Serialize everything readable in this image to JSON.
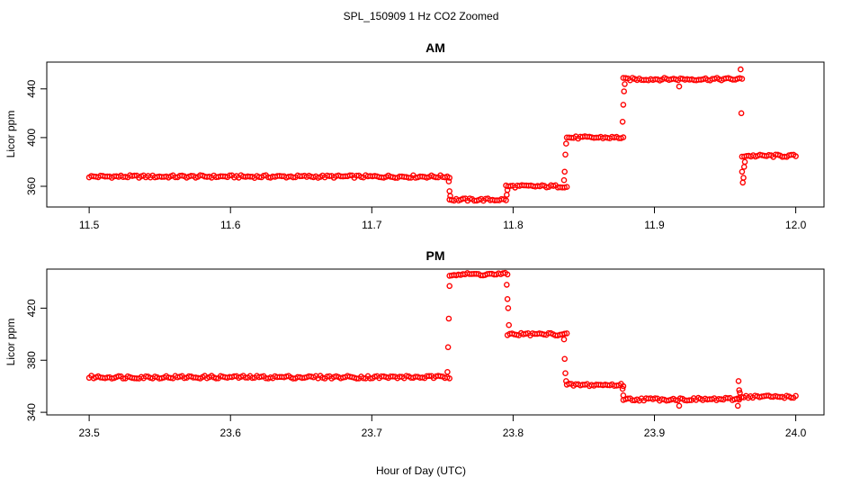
{
  "figure": {
    "title": "SPL_150909  1 Hz CO2 Zoomed",
    "xlabel": "Hour of Day (UTC)"
  },
  "chart_data": [
    {
      "type": "scatter",
      "title": "AM",
      "xlabel": "",
      "ylabel": "Licor ppm",
      "xlim": [
        11.47,
        12.02
      ],
      "ylim": [
        343,
        462
      ],
      "xticks": [
        11.5,
        11.6,
        11.7,
        11.8,
        11.9,
        12.0
      ],
      "xtick_labels": [
        "11.5",
        "11.6",
        "11.7",
        "11.8",
        "11.9",
        "12.0"
      ],
      "yticks": [
        360,
        400,
        440
      ],
      "ytick_labels": [
        "360",
        "400",
        "440"
      ],
      "grid": false,
      "marker": "open-circle",
      "color": "#ff0000",
      "segments": [
        {
          "x_start": 11.5,
          "x_end": 11.755,
          "y": 368
        },
        {
          "x_start": 11.755,
          "x_end": 11.795,
          "y": 349
        },
        {
          "x_start": 11.795,
          "x_end": 11.838,
          "y": 360
        },
        {
          "x_start": 11.838,
          "x_end": 11.878,
          "y": 400
        },
        {
          "x_start": 11.878,
          "x_end": 11.962,
          "y": 448
        },
        {
          "x_start": 11.962,
          "x_end": 12.0,
          "y": 385
        }
      ],
      "transition_points": [
        {
          "x": 11.7545,
          "y": 364
        },
        {
          "x": 11.755,
          "y": 356
        },
        {
          "x": 11.7555,
          "y": 352
        },
        {
          "x": 11.7955,
          "y": 353
        },
        {
          "x": 11.796,
          "y": 357
        },
        {
          "x": 11.836,
          "y": 365
        },
        {
          "x": 11.8365,
          "y": 372
        },
        {
          "x": 11.837,
          "y": 386
        },
        {
          "x": 11.8375,
          "y": 395
        },
        {
          "x": 11.8775,
          "y": 413
        },
        {
          "x": 11.878,
          "y": 427
        },
        {
          "x": 11.8785,
          "y": 438
        },
        {
          "x": 11.879,
          "y": 444
        },
        {
          "x": 11.9175,
          "y": 442
        },
        {
          "x": 11.961,
          "y": 456
        },
        {
          "x": 11.9615,
          "y": 420
        },
        {
          "x": 11.962,
          "y": 372
        },
        {
          "x": 11.9625,
          "y": 363
        },
        {
          "x": 11.963,
          "y": 367
        },
        {
          "x": 11.9635,
          "y": 376
        },
        {
          "x": 11.964,
          "y": 380
        }
      ]
    },
    {
      "type": "scatter",
      "title": "PM",
      "xlabel": "Hour of Day (UTC)",
      "ylabel": "Licor ppm",
      "xlim": [
        23.47,
        24.02
      ],
      "ylim": [
        338,
        450
      ],
      "xticks": [
        23.5,
        23.6,
        23.7,
        23.8,
        23.9,
        24.0
      ],
      "xtick_labels": [
        "23.5",
        "23.6",
        "23.7",
        "23.8",
        "23.9",
        "24.0"
      ],
      "yticks": [
        340,
        380,
        420
      ],
      "ytick_labels": [
        "340",
        "380",
        "420"
      ],
      "grid": false,
      "marker": "open-circle",
      "color": "#ff0000",
      "segments": [
        {
          "x_start": 23.5,
          "x_end": 23.755,
          "y": 367
        },
        {
          "x_start": 23.755,
          "x_end": 23.796,
          "y": 446
        },
        {
          "x_start": 23.796,
          "x_end": 23.838,
          "y": 400
        },
        {
          "x_start": 23.838,
          "x_end": 23.878,
          "y": 361
        },
        {
          "x_start": 23.878,
          "x_end": 23.96,
          "y": 350
        },
        {
          "x_start": 23.96,
          "x_end": 24.0,
          "y": 352
        }
      ],
      "transition_points": [
        {
          "x": 23.7535,
          "y": 371
        },
        {
          "x": 23.754,
          "y": 390
        },
        {
          "x": 23.7545,
          "y": 412
        },
        {
          "x": 23.755,
          "y": 437
        },
        {
          "x": 23.7955,
          "y": 438
        },
        {
          "x": 23.796,
          "y": 427
        },
        {
          "x": 23.7965,
          "y": 420
        },
        {
          "x": 23.797,
          "y": 407
        },
        {
          "x": 23.836,
          "y": 396
        },
        {
          "x": 23.8365,
          "y": 381
        },
        {
          "x": 23.837,
          "y": 370
        },
        {
          "x": 23.8375,
          "y": 364
        },
        {
          "x": 23.8775,
          "y": 358
        },
        {
          "x": 23.878,
          "y": 353
        },
        {
          "x": 23.9175,
          "y": 345
        },
        {
          "x": 23.959,
          "y": 345
        },
        {
          "x": 23.9595,
          "y": 364
        },
        {
          "x": 23.96,
          "y": 357
        },
        {
          "x": 23.9605,
          "y": 355
        }
      ]
    }
  ]
}
